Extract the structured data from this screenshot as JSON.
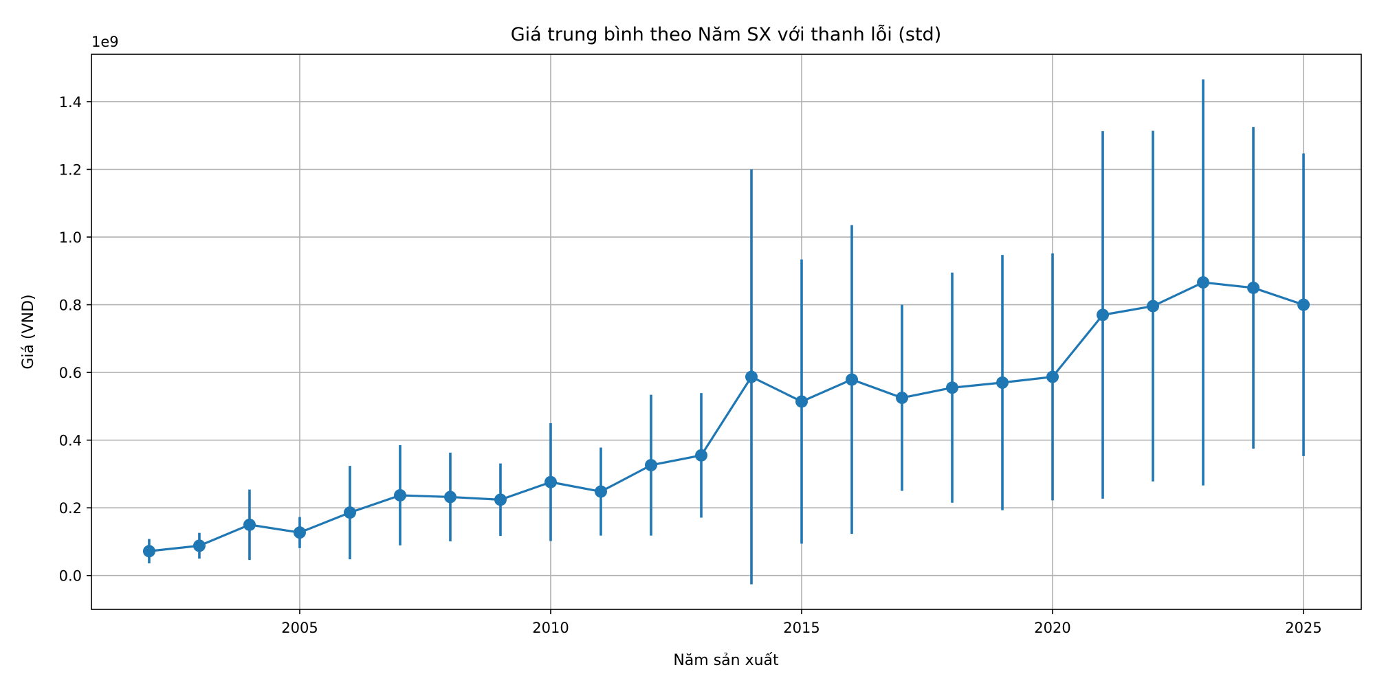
{
  "chart_data": {
    "type": "line",
    "title": "Giá trung bình theo Năm SX với thanh lỗi (std)",
    "xlabel": "Năm sản xuất",
    "ylabel": "Giá (VND)",
    "y_offset_label": "1e9",
    "y_multiplier": 1000000000,
    "xlim": [
      2000.85,
      2026.15
    ],
    "ylim": [
      -0.1,
      1.54
    ],
    "x_ticks": [
      2005,
      2010,
      2015,
      2020,
      2025
    ],
    "x_tick_labels": [
      "2005",
      "2010",
      "2015",
      "2020",
      "2025"
    ],
    "y_ticks": [
      0.0,
      0.2,
      0.4,
      0.6,
      0.8,
      1.0,
      1.2,
      1.4
    ],
    "y_tick_labels": [
      "0.0",
      "0.2",
      "0.4",
      "0.6",
      "0.8",
      "1.0",
      "1.2",
      "1.4"
    ],
    "grid": true,
    "color": "#1f77b4",
    "series": [
      {
        "x": [
          2002,
          2003,
          2004,
          2005,
          2006,
          2007,
          2008,
          2009,
          2010,
          2011,
          2012,
          2013,
          2014,
          2015,
          2016,
          2017,
          2018,
          2019,
          2020,
          2021,
          2022,
          2023,
          2024,
          2025
        ],
        "y": [
          0.072,
          0.088,
          0.15,
          0.127,
          0.186,
          0.237,
          0.232,
          0.224,
          0.276,
          0.248,
          0.326,
          0.355,
          0.587,
          0.514,
          0.579,
          0.525,
          0.555,
          0.57,
          0.587,
          0.77,
          0.796,
          0.866,
          0.85,
          0.8
        ],
        "error": [
          0.036,
          0.038,
          0.104,
          0.046,
          0.138,
          0.148,
          0.131,
          0.107,
          0.174,
          0.13,
          0.208,
          0.184,
          0.613,
          0.42,
          0.456,
          0.275,
          0.34,
          0.377,
          0.365,
          0.543,
          0.518,
          0.6,
          0.475,
          0.447
        ]
      }
    ]
  }
}
